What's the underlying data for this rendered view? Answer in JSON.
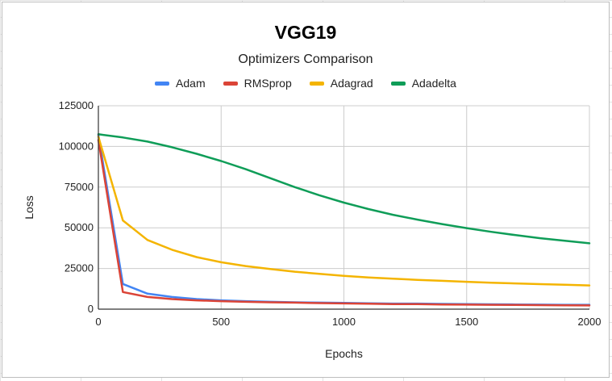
{
  "chart_data": {
    "type": "line",
    "title": "VGG19",
    "subtitle": "Optimizers Comparison",
    "xlabel": "Epochs",
    "ylabel": "Loss",
    "xlim": [
      0,
      2000
    ],
    "ylim": [
      0,
      125000
    ],
    "x_ticks": [
      0,
      500,
      1000,
      1500,
      2000
    ],
    "y_ticks": [
      0,
      25000,
      50000,
      75000,
      100000,
      125000
    ],
    "grid": true,
    "legend_position": "top",
    "series": [
      {
        "name": "Adam",
        "color": "#4285f4",
        "x": [
          0,
          100,
          200,
          300,
          400,
          500,
          600,
          700,
          800,
          900,
          1000,
          1100,
          1200,
          1300,
          1400,
          1500,
          1600,
          1700,
          1800,
          1900,
          2000
        ],
        "y": [
          107000,
          15500,
          9500,
          7500,
          6200,
          5400,
          4900,
          4500,
          4200,
          4000,
          3800,
          3600,
          3400,
          3400,
          3200,
          3100,
          3000,
          2900,
          2800,
          2700,
          2700
        ]
      },
      {
        "name": "RMSprop",
        "color": "#db4437",
        "x": [
          0,
          100,
          200,
          300,
          400,
          500,
          600,
          700,
          800,
          900,
          1000,
          1100,
          1200,
          1300,
          1400,
          1500,
          1600,
          1700,
          1800,
          1900,
          2000
        ],
        "y": [
          104000,
          10500,
          7500,
          6200,
          5400,
          4900,
          4500,
          4200,
          4000,
          3700,
          3500,
          3300,
          3100,
          3100,
          2900,
          2800,
          2700,
          2600,
          2500,
          2400,
          2300
        ]
      },
      {
        "name": "Adagrad",
        "color": "#f4b400",
        "x": [
          0,
          100,
          200,
          300,
          400,
          500,
          600,
          700,
          800,
          900,
          1000,
          1100,
          1200,
          1300,
          1400,
          1500,
          1600,
          1700,
          1800,
          1900,
          2000
        ],
        "y": [
          106000,
          54500,
          42500,
          36500,
          32000,
          28800,
          26500,
          24700,
          23000,
          21700,
          20500,
          19500,
          18700,
          18000,
          17400,
          16800,
          16200,
          15800,
          15400,
          15000,
          14600
        ]
      },
      {
        "name": "Adadelta",
        "color": "#0f9d58",
        "x": [
          0,
          100,
          200,
          300,
          400,
          500,
          600,
          700,
          800,
          900,
          1000,
          1100,
          1200,
          1300,
          1400,
          1500,
          1600,
          1700,
          1800,
          1900,
          2000
        ],
        "y": [
          107500,
          105500,
          103000,
          99500,
          95500,
          91000,
          86000,
          80500,
          75000,
          70000,
          65500,
          61500,
          58000,
          55000,
          52300,
          49800,
          47500,
          45500,
          43600,
          42000,
          40500
        ]
      }
    ]
  }
}
